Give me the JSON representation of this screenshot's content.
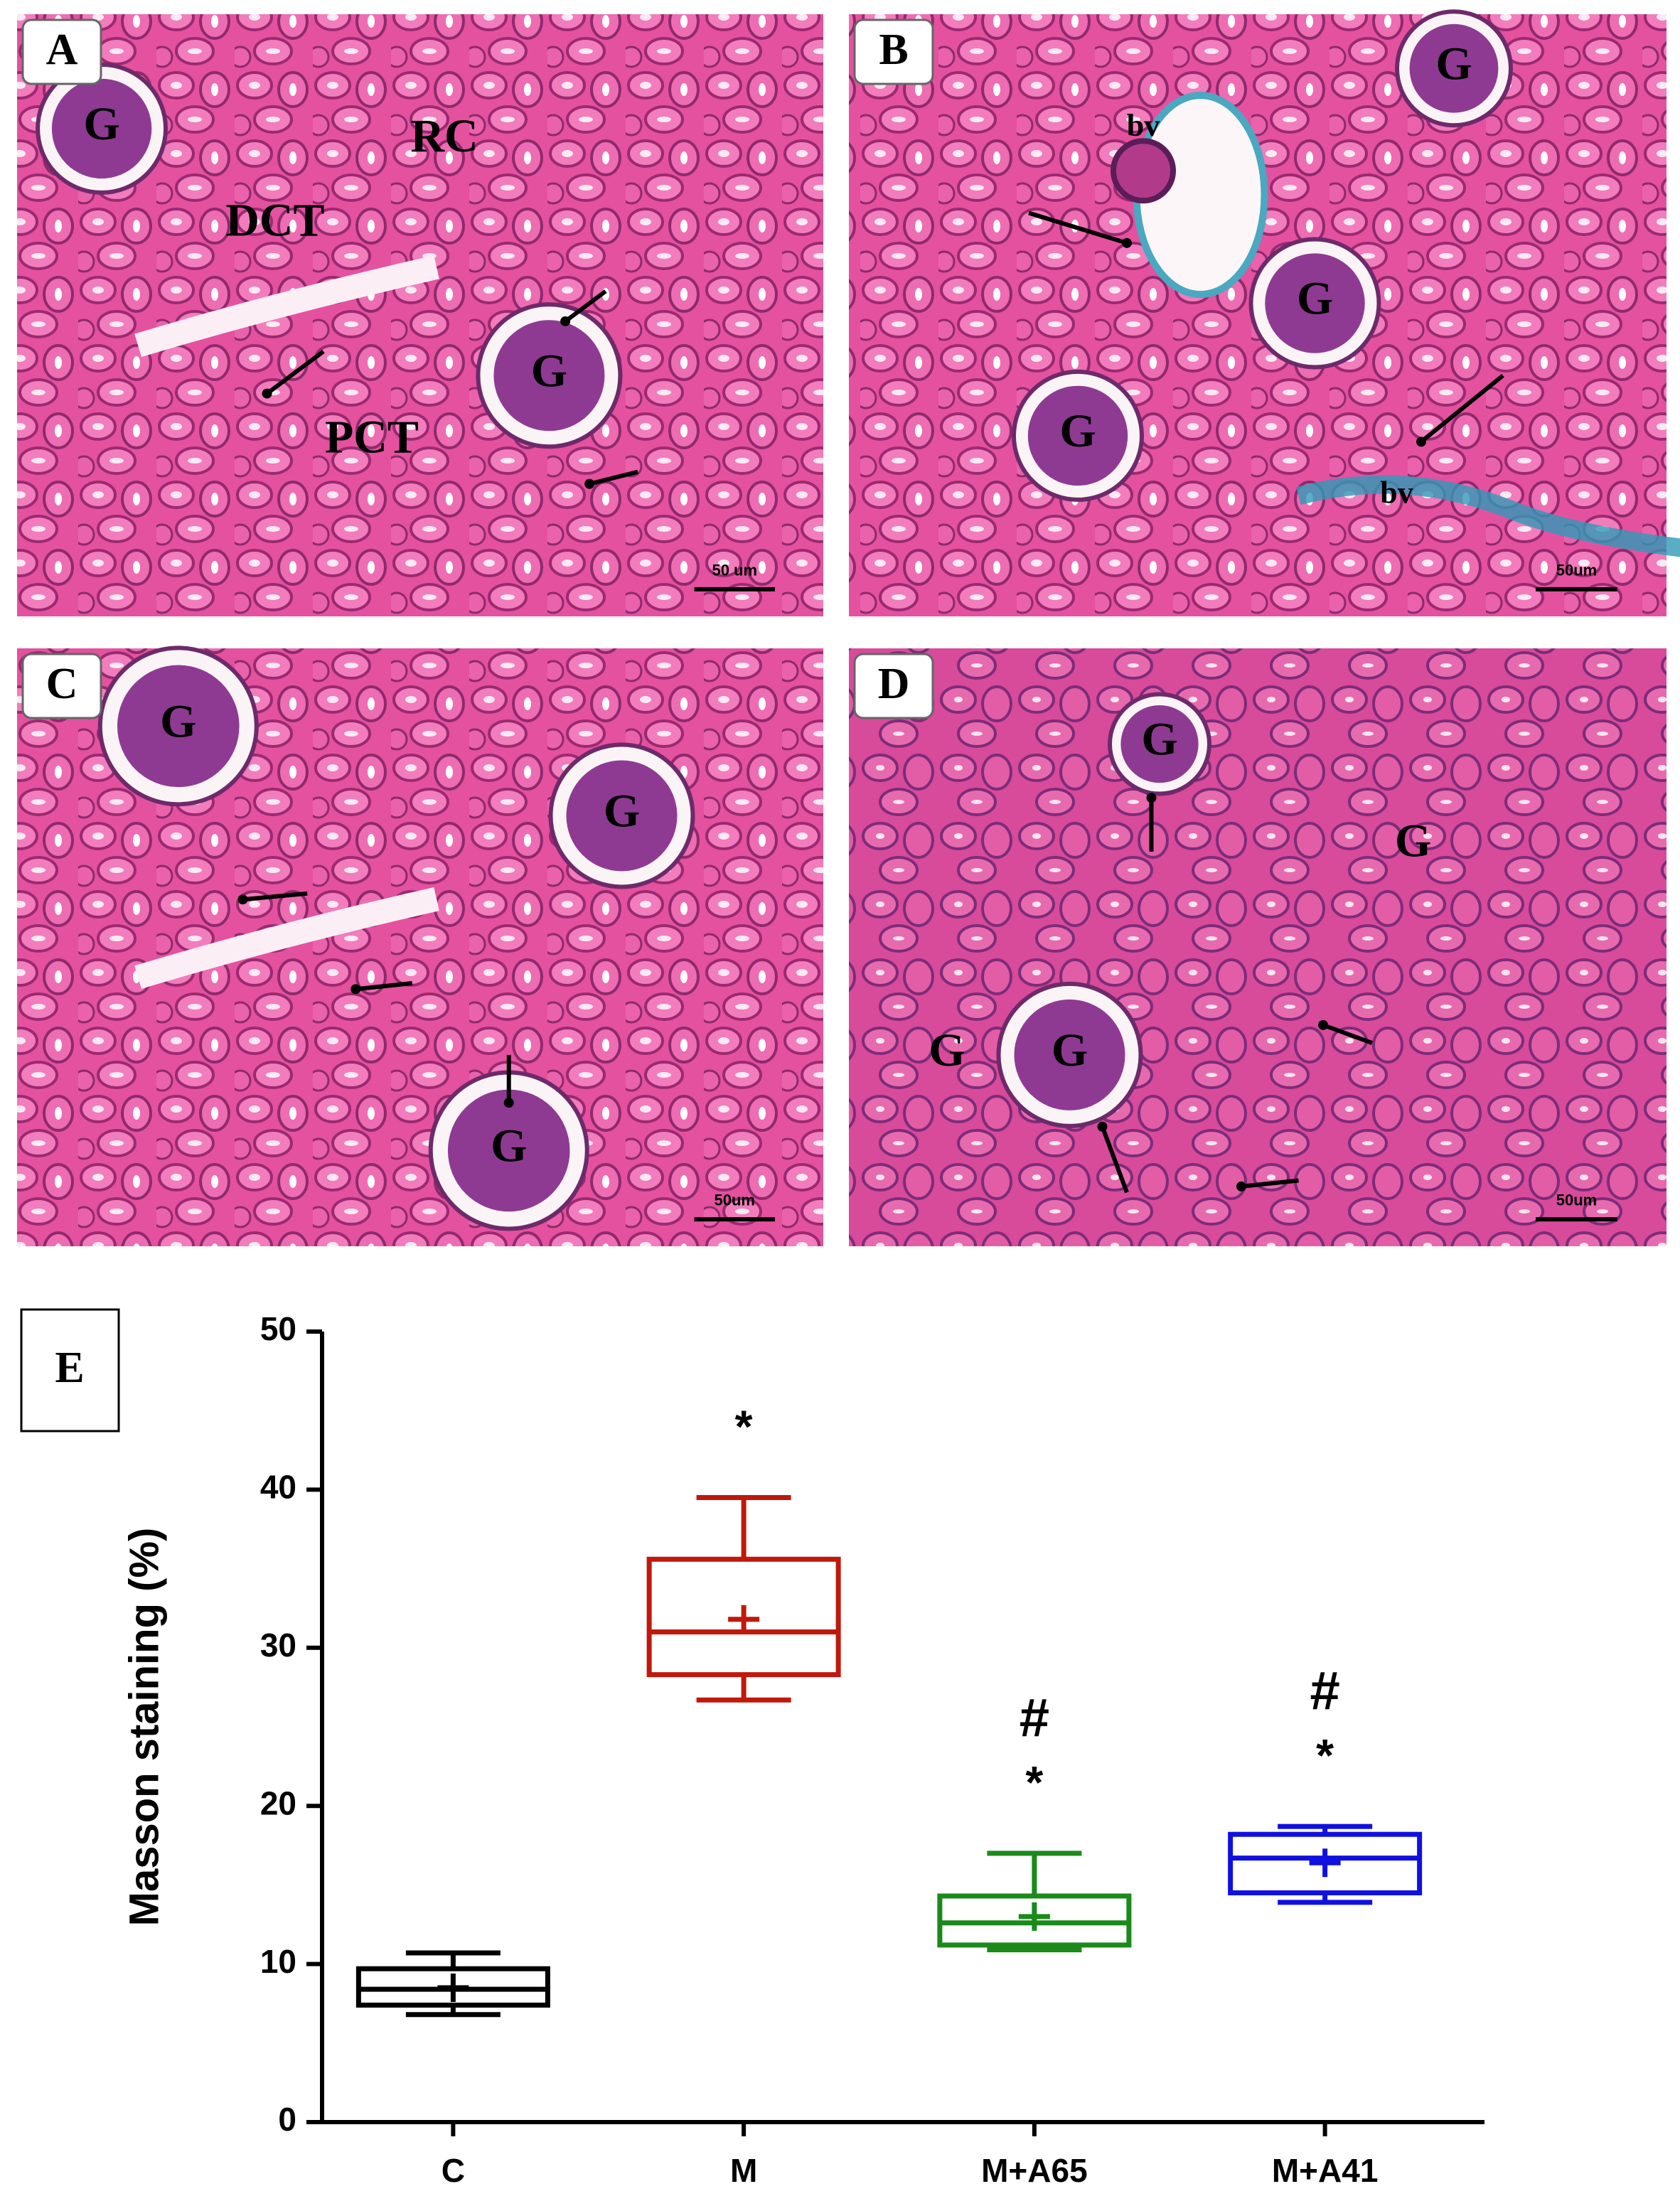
{
  "panels": [
    {
      "label": "A",
      "annotations": [
        "G",
        "G",
        "RC",
        "DCT",
        "PCT"
      ],
      "scale_bar": "50 um"
    },
    {
      "label": "B",
      "annotations": [
        "G",
        "bv",
        "G",
        "G",
        "bv"
      ],
      "scale_bar": "50um"
    },
    {
      "label": "C",
      "annotations": [
        "G",
        "G",
        "G"
      ],
      "scale_bar": "50um"
    },
    {
      "label": "D",
      "annotations": [
        "G",
        "G",
        "G",
        "G"
      ],
      "scale_bar": "50um"
    }
  ],
  "chart_data": {
    "type": "box",
    "panel_label": "E",
    "ylabel": "Masson staining (%)",
    "categories": [
      "C",
      "M",
      "M+A65",
      "M+A41"
    ],
    "boxes": [
      {
        "color": "#000000",
        "min": 6.8,
        "q1": 7.4,
        "median": 8.4,
        "mean": 8.5,
        "q3": 9.7,
        "max": 10.7,
        "annotations": []
      },
      {
        "color": "#c0180c",
        "min": 26.7,
        "q1": 28.3,
        "median": 31.0,
        "mean": 31.8,
        "q3": 35.6,
        "max": 39.5,
        "annotations": [
          "*"
        ]
      },
      {
        "color": "#1a8a1a",
        "min": 10.9,
        "q1": 11.2,
        "median": 12.6,
        "mean": 13.0,
        "q3": 14.3,
        "max": 17.0,
        "annotations": [
          "*",
          "#"
        ]
      },
      {
        "color": "#1010e0",
        "min": 13.9,
        "q1": 14.5,
        "median": 16.7,
        "mean": 16.4,
        "q3": 18.2,
        "max": 18.7,
        "annotations": [
          "*",
          "#"
        ]
      }
    ],
    "ylim": [
      0,
      50
    ],
    "yticks": [
      0,
      10,
      20,
      30,
      40,
      50
    ]
  }
}
